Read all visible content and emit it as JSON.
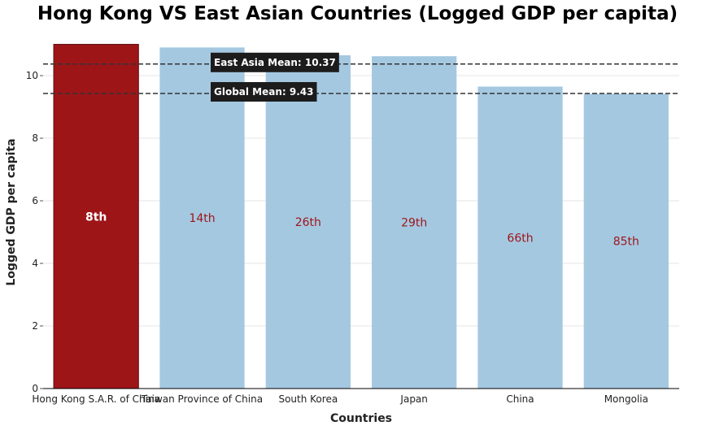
{
  "chart_data": {
    "type": "bar",
    "title": "Hong Kong VS East Asian Countries (Logged GDP per capita)",
    "xlabel": "Countries",
    "ylabel": "Logged GDP per capita",
    "ylim": [
      0,
      11.3
    ],
    "yticks": [
      0,
      2,
      4,
      6,
      8,
      10
    ],
    "grid": true,
    "categories": [
      "Hong Kong S.A.R. of China",
      "Taiwan Province of China",
      "South Korea",
      "Japan",
      "China",
      "Mongolia"
    ],
    "values": [
      11.0,
      10.9,
      10.65,
      10.62,
      9.65,
      9.42
    ],
    "rank_labels": [
      "8th",
      "14th",
      "26th",
      "29th",
      "66th",
      "85th"
    ],
    "highlight_index": 0,
    "colors": {
      "highlight": "#9e1518",
      "default": "#a5c8e1",
      "mean_line": "#333333",
      "label_box": "#1c1c1c"
    },
    "reference_lines": [
      {
        "label": "East Asia Mean: 10.37",
        "value": 10.37
      },
      {
        "label": "Global Mean: 9.43",
        "value": 9.43
      }
    ]
  }
}
